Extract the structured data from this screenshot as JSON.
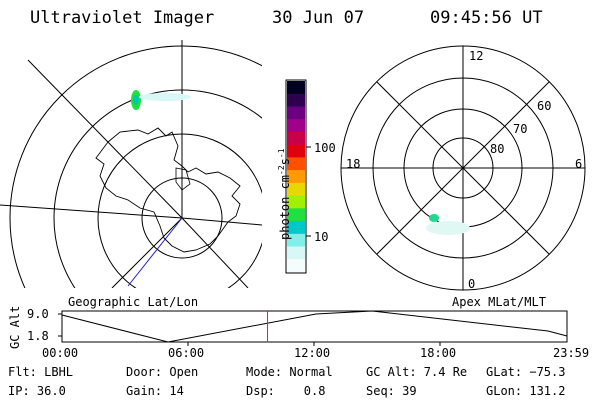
{
  "header": {
    "title": "Ultraviolet Imager",
    "date": "30 Jun 07",
    "time": "09:45:56 UT"
  },
  "left_map": {
    "caption": "Geographic Lat/Lon"
  },
  "right_map": {
    "caption": "Apex MLat/MLT",
    "mlt_labels": [
      "12",
      "18",
      "6",
      "0"
    ],
    "lat_labels": [
      "60",
      "70",
      "80"
    ]
  },
  "colorbar": {
    "unit_label": "photon cm",
    "unit_exp1": "-2",
    "unit_s": "s",
    "unit_exp2": "-1",
    "ticks": [
      "100",
      "10"
    ],
    "colors": [
      "#000020",
      "#300050",
      "#6a0080",
      "#a0008a",
      "#c8004a",
      "#e00010",
      "#ff5000",
      "#ff9a00",
      "#e8d800",
      "#a0f000",
      "#20e040",
      "#00c8c8",
      "#80f0e8",
      "#d8f8f8",
      "#f4fcfc"
    ]
  },
  "timeline": {
    "axis_title": "GC Alt",
    "y_ticks": [
      "9.0",
      "1.8"
    ],
    "x_ticks": [
      "00:00",
      "06:00",
      "12:00",
      "18:00",
      "23:59"
    ],
    "current_time_fraction": 0.407
  },
  "status": {
    "flt": "Flt: LBHL",
    "ip": "IP: 36.0",
    "door": "Door: Open",
    "gain": "Gain: 14",
    "mode": "Mode: Normal",
    "dsp": "Dsp:    0.8",
    "gcalt": "GC Alt: 7.4 Re",
    "seq": "Seq: 39",
    "glat": "GLat: −75.3",
    "glon": "GLon: 131.2"
  }
}
